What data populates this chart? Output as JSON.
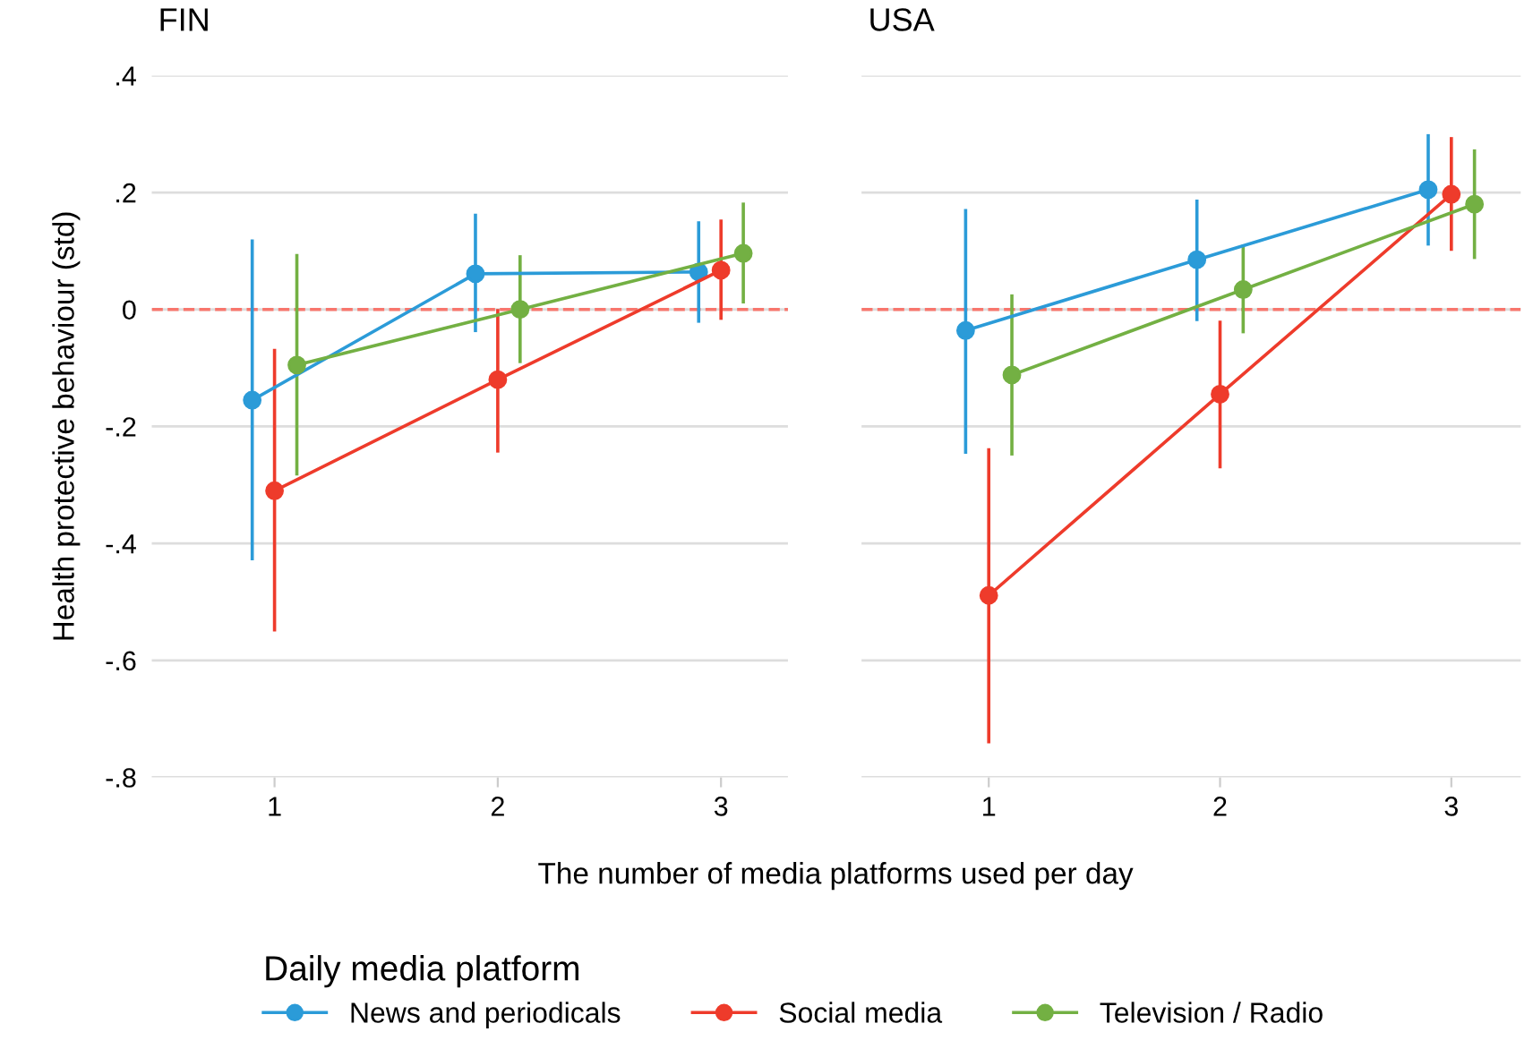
{
  "chart_data": [
    {
      "type": "line",
      "title": "FIN",
      "xlabel": "The number of media platforms used per day",
      "ylabel": "Health protective behaviour (std)",
      "legend_title": "Daily media platform",
      "legend": "bottom",
      "grid": "y",
      "marker": "circle",
      "line_style": "solid",
      "categories": [
        "1",
        "2",
        "3"
      ],
      "ylim": [
        -0.8,
        0.4
      ],
      "yticks": [
        {
          "value": -0.8,
          "label": "-.8"
        },
        {
          "value": -0.6,
          "label": "-.6"
        },
        {
          "value": -0.4,
          "label": "-.4"
        },
        {
          "value": -0.2,
          "label": "-.2"
        },
        0,
        {
          "value": 0.2,
          "label": ".2"
        },
        {
          "value": 0.4,
          "label": ".4"
        }
      ],
      "ref_lines": [
        {
          "axis": "y",
          "value": 0,
          "color": "#f8766d",
          "line_style": "dashed"
        }
      ],
      "series": [
        {
          "name": "News and periodicals",
          "color": "#2b9bd8",
          "values": [
            -0.155,
            0.061,
            0.064
          ],
          "errors": [
            [
              -0.426,
              0.117
            ],
            [
              -0.036,
              0.161
            ],
            [
              -0.02,
              0.148
            ]
          ]
        },
        {
          "name": "Social media",
          "color": "#ee3b2b",
          "values": [
            -0.31,
            -0.12,
            0.067
          ],
          "errors": [
            [
              -0.548,
              -0.07
            ],
            [
              -0.242,
              -0.002
            ],
            [
              -0.015,
              0.151
            ]
          ]
        },
        {
          "name": "Television / Radio",
          "color": "#73b043",
          "values": [
            -0.095,
            0.0,
            0.096
          ],
          "errors": [
            [
              -0.281,
              0.092
            ],
            [
              -0.089,
              0.09
            ],
            [
              0.013,
              0.18
            ]
          ]
        }
      ]
    },
    {
      "type": "line",
      "title": "USA",
      "grid": "y",
      "marker": "circle",
      "line_style": "solid",
      "tick_labels": "x",
      "categories": [
        "1",
        "2",
        "3"
      ],
      "ylim": [
        -0.8,
        0.4
      ],
      "yticks": [
        {
          "value": -0.8,
          "label": null
        },
        {
          "value": -0.6,
          "label": null
        },
        {
          "value": -0.4,
          "label": null
        },
        {
          "value": -0.2,
          "label": null
        },
        {
          "value": 0,
          "label": null
        },
        {
          "value": 0.2,
          "label": null
        },
        {
          "value": 0.4,
          "label": null
        }
      ],
      "ref_lines": [
        {
          "axis": "y",
          "value": 0,
          "color": "#f8766d",
          "line_style": "dashed"
        }
      ],
      "series": [
        {
          "name": "News and periodicals",
          "color": "#2b9bd8",
          "values": [
            -0.036,
            0.085,
            0.205
          ],
          "errors": [
            [
              -0.244,
              0.169
            ],
            [
              -0.017,
              0.185
            ],
            [
              0.112,
              0.297
            ]
          ]
        },
        {
          "name": "Social media",
          "color": "#ee3b2b",
          "values": [
            -0.489,
            -0.145,
            0.197
          ],
          "errors": [
            [
              -0.739,
              -0.24
            ],
            [
              -0.269,
              -0.022
            ],
            [
              0.103,
              0.292
            ]
          ]
        },
        {
          "name": "Television / Radio",
          "color": "#73b043",
          "values": [
            -0.112,
            0.034,
            0.18
          ],
          "errors": [
            [
              -0.247,
              0.023
            ],
            [
              -0.038,
              0.108
            ],
            [
              0.089,
              0.271
            ]
          ]
        }
      ]
    }
  ]
}
